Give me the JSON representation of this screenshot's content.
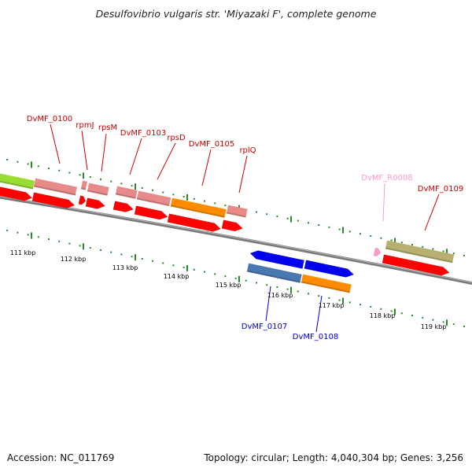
{
  "title": "Desulfovibrio vulgaris str. 'Miyazaki F', complete genome",
  "footer": {
    "accession": "Accession: NC_011769",
    "stats": "Topology: circular; Length: 4,040,304 bp; Genes: 3,256"
  },
  "colors": {
    "backbone": "#7a7a7a",
    "ticks": "#2a8a2a",
    "cds": "#ff0000",
    "forward_label": "#cc0000",
    "reverse_label": "#0000cc",
    "rna_label": "#ff99cc",
    "pink_track": "#e88a8a",
    "orange_track": "#ff8c00",
    "olive_track": "#b8b070",
    "green_track": "#99dd33",
    "steel_blue_track": "#4a78b0",
    "blue_cds": "#0000ee"
  },
  "scale_labels": [
    "111 kbp",
    "112 kbp",
    "113 kbp",
    "114 kbp",
    "115 kbp",
    "116 kbp",
    "117 kbp",
    "118 kbp",
    "119 kbp"
  ],
  "feature_labels": {
    "forward": [
      "DvMF_0100",
      "rpmJ",
      "rpsM",
      "DvMF_0103",
      "rpsD",
      "DvMF_0105",
      "rplQ",
      "DvMF_0109"
    ],
    "rna": [
      "DvMF_R0008"
    ],
    "reverse": [
      "DvMF_0107",
      "DvMF_0108"
    ]
  }
}
